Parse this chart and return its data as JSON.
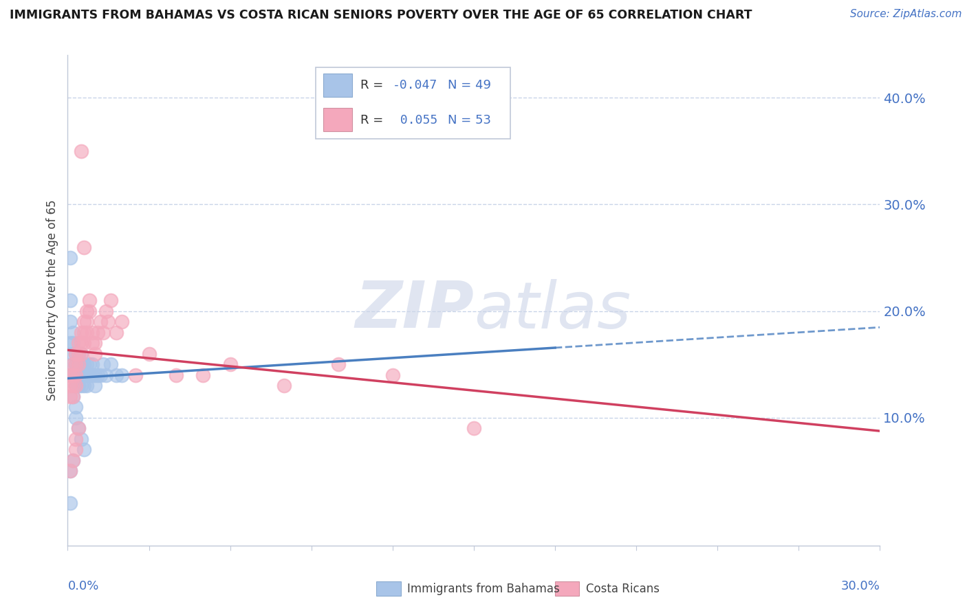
{
  "title": "IMMIGRANTS FROM BAHAMAS VS COSTA RICAN SENIORS POVERTY OVER THE AGE OF 65 CORRELATION CHART",
  "source": "Source: ZipAtlas.com",
  "ylabel": "Seniors Poverty Over the Age of 65",
  "watermark_zip": "ZIP",
  "watermark_atlas": "atlas",
  "blue_R": -0.047,
  "blue_N": 49,
  "pink_R": 0.055,
  "pink_N": 53,
  "blue_color": "#a8c4e8",
  "pink_color": "#f4a8bc",
  "blue_line_color": "#4a7fc0",
  "pink_line_color": "#d04060",
  "right_yticks": [
    0.1,
    0.2,
    0.3,
    0.4
  ],
  "right_ytick_labels": [
    "10.0%",
    "20.0%",
    "30.0%",
    "40.0%"
  ],
  "xlim": [
    0.0,
    0.3
  ],
  "ylim": [
    -0.02,
    0.44
  ],
  "blue_scatter_x": [
    0.001,
    0.001,
    0.001,
    0.001,
    0.002,
    0.002,
    0.002,
    0.002,
    0.002,
    0.003,
    0.003,
    0.003,
    0.003,
    0.004,
    0.004,
    0.004,
    0.004,
    0.005,
    0.005,
    0.005,
    0.005,
    0.006,
    0.006,
    0.006,
    0.007,
    0.007,
    0.007,
    0.008,
    0.008,
    0.009,
    0.009,
    0.01,
    0.01,
    0.011,
    0.012,
    0.013,
    0.014,
    0.016,
    0.018,
    0.02,
    0.002,
    0.003,
    0.003,
    0.004,
    0.005,
    0.006,
    0.001,
    0.002,
    0.001
  ],
  "blue_scatter_y": [
    0.25,
    0.21,
    0.19,
    0.17,
    0.18,
    0.17,
    0.16,
    0.15,
    0.14,
    0.16,
    0.15,
    0.14,
    0.13,
    0.16,
    0.15,
    0.14,
    0.13,
    0.16,
    0.15,
    0.14,
    0.13,
    0.15,
    0.14,
    0.13,
    0.15,
    0.14,
    0.13,
    0.15,
    0.14,
    0.15,
    0.14,
    0.14,
    0.13,
    0.14,
    0.14,
    0.15,
    0.14,
    0.15,
    0.14,
    0.14,
    0.12,
    0.11,
    0.1,
    0.09,
    0.08,
    0.07,
    0.05,
    0.06,
    0.02
  ],
  "pink_scatter_x": [
    0.001,
    0.001,
    0.001,
    0.002,
    0.002,
    0.002,
    0.002,
    0.003,
    0.003,
    0.003,
    0.003,
    0.004,
    0.004,
    0.004,
    0.005,
    0.005,
    0.005,
    0.006,
    0.006,
    0.006,
    0.007,
    0.007,
    0.007,
    0.008,
    0.008,
    0.009,
    0.009,
    0.01,
    0.01,
    0.011,
    0.012,
    0.013,
    0.014,
    0.015,
    0.016,
    0.018,
    0.02,
    0.025,
    0.03,
    0.04,
    0.05,
    0.06,
    0.08,
    0.1,
    0.12,
    0.15,
    0.005,
    0.006,
    0.003,
    0.004,
    0.003,
    0.002,
    0.001
  ],
  "pink_scatter_y": [
    0.14,
    0.13,
    0.12,
    0.15,
    0.14,
    0.13,
    0.12,
    0.16,
    0.15,
    0.14,
    0.13,
    0.17,
    0.16,
    0.15,
    0.18,
    0.17,
    0.16,
    0.19,
    0.18,
    0.17,
    0.2,
    0.19,
    0.18,
    0.21,
    0.2,
    0.18,
    0.17,
    0.17,
    0.16,
    0.18,
    0.19,
    0.18,
    0.2,
    0.19,
    0.21,
    0.18,
    0.19,
    0.14,
    0.16,
    0.14,
    0.14,
    0.15,
    0.13,
    0.15,
    0.14,
    0.09,
    0.35,
    0.26,
    0.08,
    0.09,
    0.07,
    0.06,
    0.05
  ]
}
